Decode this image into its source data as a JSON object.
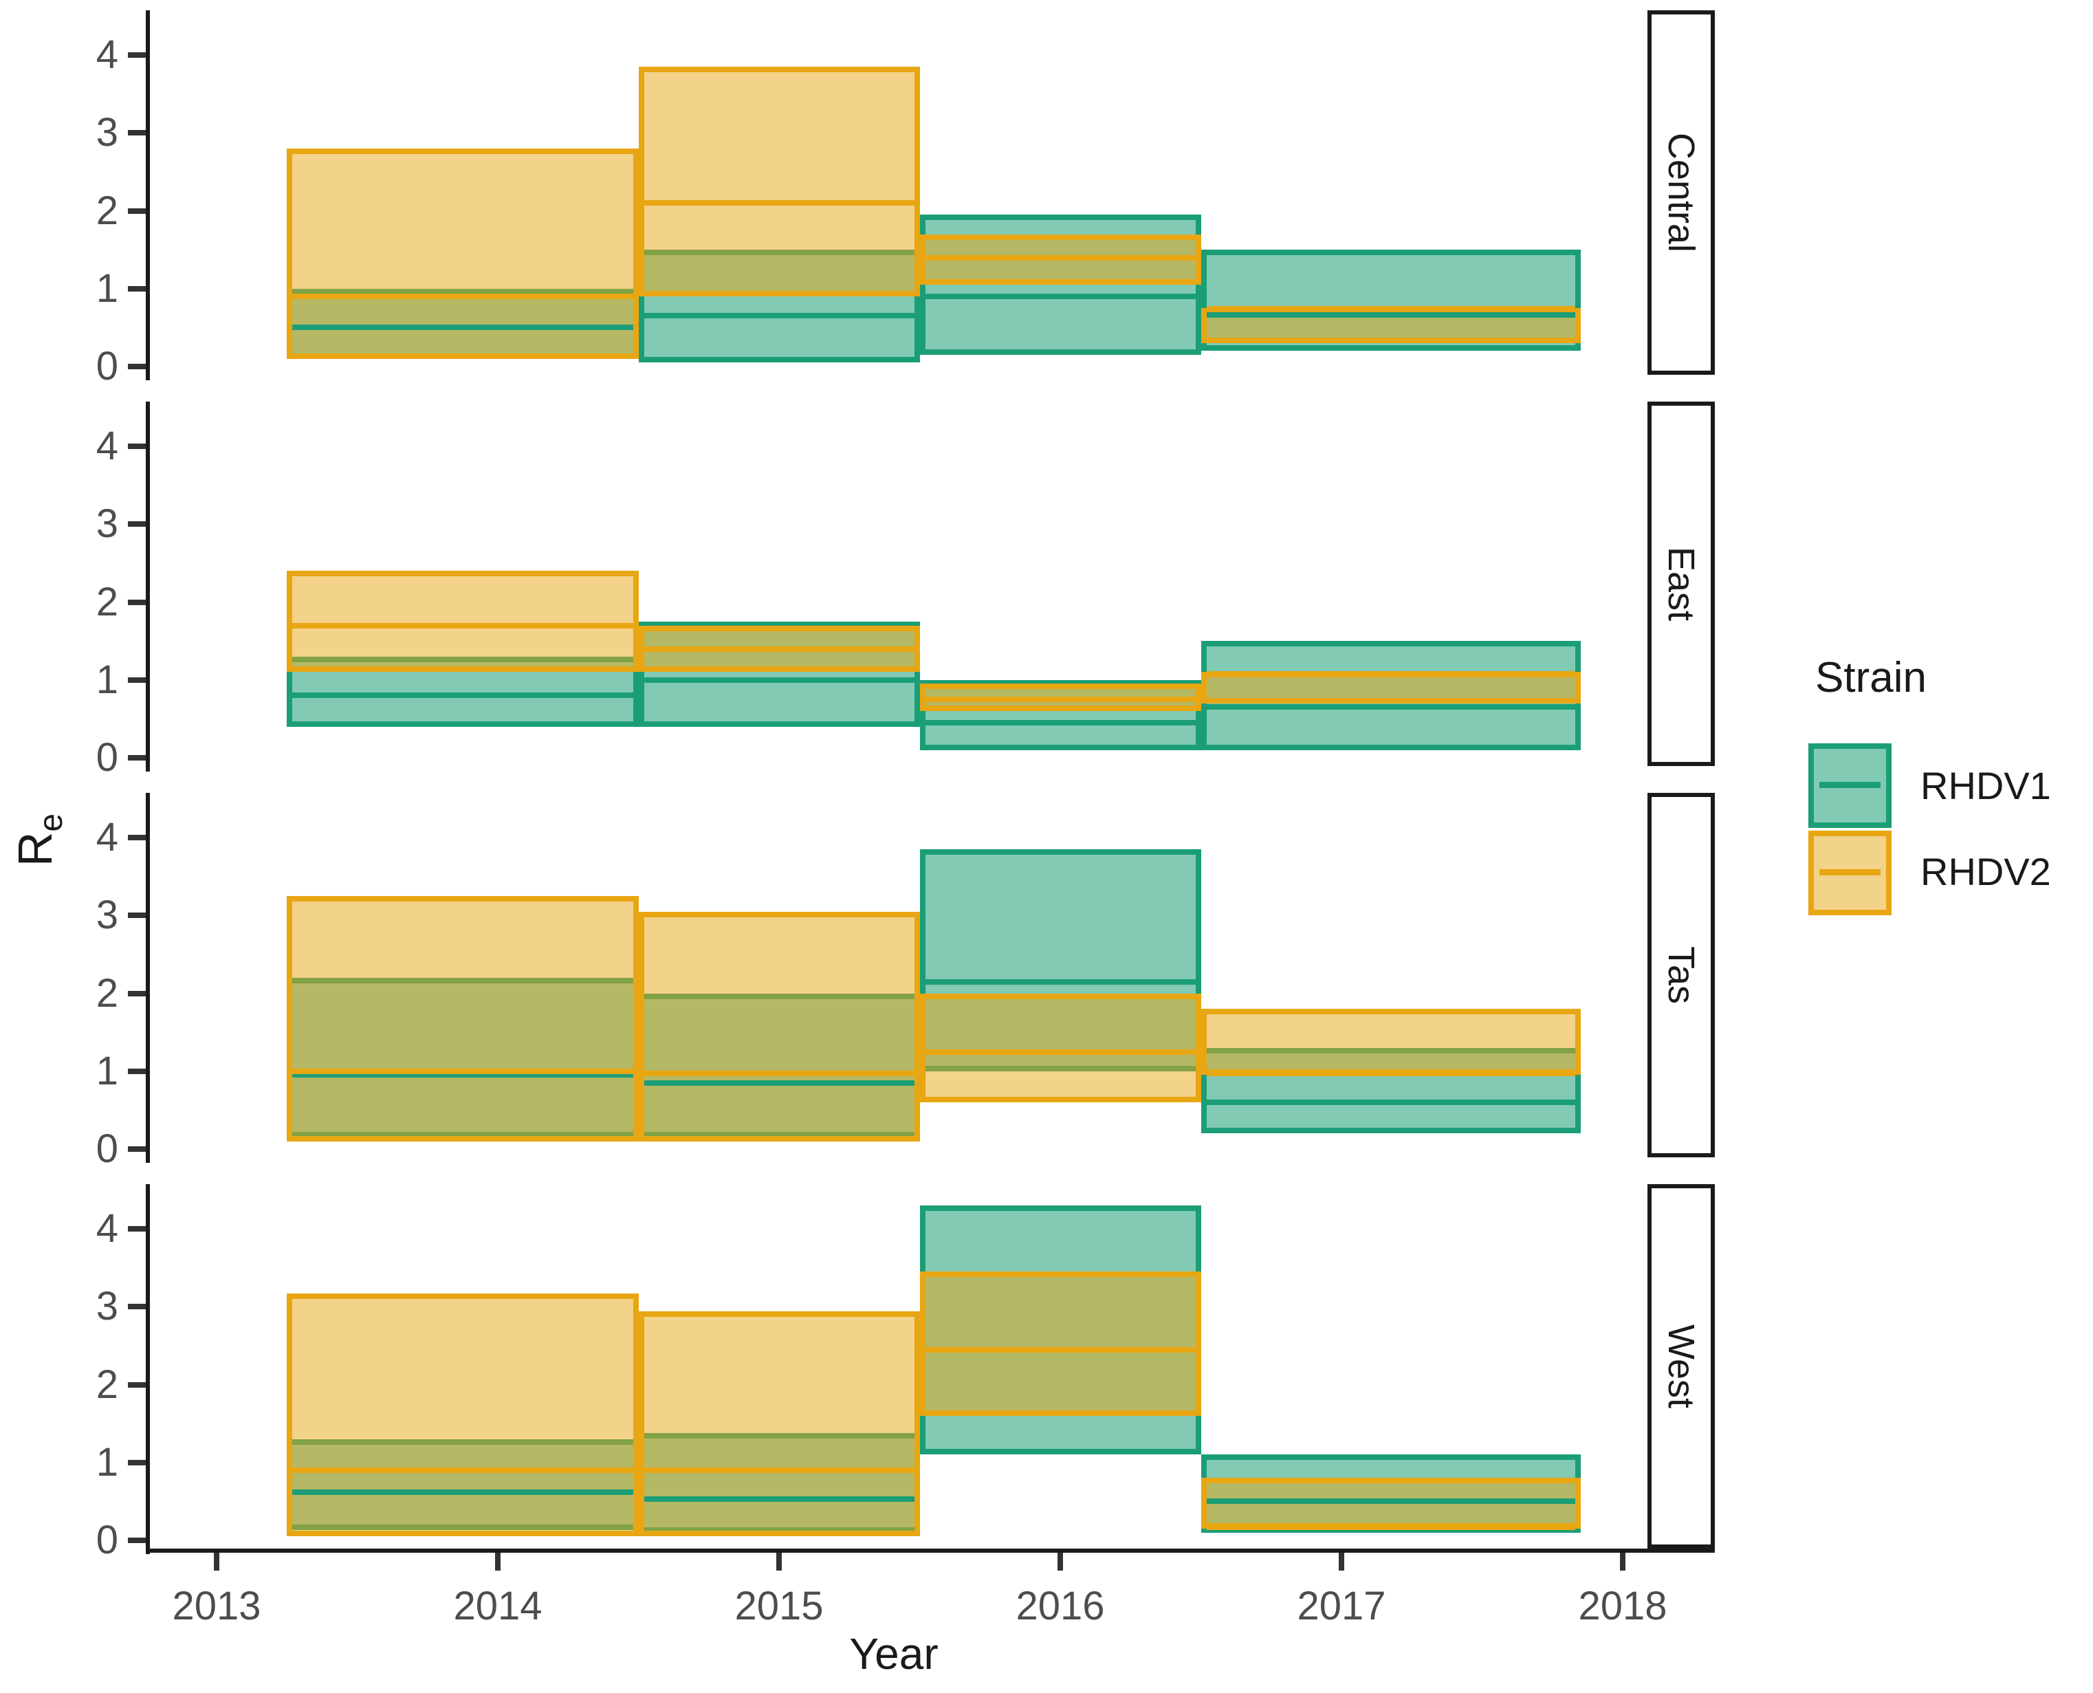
{
  "chart_data": {
    "type": "area",
    "title": "",
    "xlabel": "Year",
    "ylabel_main": "R",
    "ylabel_sub": "e",
    "x_ticks": [
      2013,
      2014,
      2015,
      2016,
      2017,
      2018
    ],
    "y_ticks": [
      0,
      1,
      2,
      3,
      4
    ],
    "ylim": [
      0,
      4.5
    ],
    "grid": false,
    "legend": {
      "title": "Strain",
      "position": "right",
      "entries": [
        {
          "label": "RHDV1",
          "stroke": "#1B9E77",
          "fill": "rgba(27,158,119,0.55)"
        },
        {
          "label": "RHDV2",
          "stroke": "#E8A613",
          "fill": "rgba(232,166,19,0.5)"
        }
      ]
    },
    "facets": [
      {
        "label": "Central",
        "segments": [
          {
            "x0": 2013.25,
            "x1": 2014.5,
            "RHDV1": {
              "lo": 0.1,
              "med": 0.5,
              "hi": 1.0
            },
            "RHDV2": {
              "lo": 0.1,
              "med": 0.9,
              "hi": 2.8
            }
          },
          {
            "x0": 2014.5,
            "x1": 2015.5,
            "RHDV1": {
              "lo": 0.05,
              "med": 0.65,
              "hi": 1.5
            },
            "RHDV2": {
              "lo": 0.9,
              "med": 2.1,
              "hi": 3.85
            }
          },
          {
            "x0": 2015.5,
            "x1": 2016.5,
            "RHDV1": {
              "lo": 0.15,
              "med": 0.9,
              "hi": 1.95
            },
            "RHDV2": {
              "lo": 1.05,
              "med": 1.4,
              "hi": 1.7
            }
          },
          {
            "x0": 2016.5,
            "x1": 2017.85,
            "RHDV1": {
              "lo": 0.2,
              "med": 0.66,
              "hi": 1.5
            },
            "RHDV2": {
              "lo": 0.3,
              "med": 0.74,
              "hi": 0.75
            }
          }
        ]
      },
      {
        "label": "East",
        "segments": [
          {
            "x0": 2013.25,
            "x1": 2014.5,
            "RHDV1": {
              "lo": 0.4,
              "med": 0.8,
              "hi": 1.3
            },
            "RHDV2": {
              "lo": 1.1,
              "med": 1.7,
              "hi": 2.4
            }
          },
          {
            "x0": 2014.5,
            "x1": 2015.5,
            "RHDV1": {
              "lo": 0.4,
              "med": 1.0,
              "hi": 1.75
            },
            "RHDV2": {
              "lo": 1.1,
              "med": 1.4,
              "hi": 1.7
            }
          },
          {
            "x0": 2015.5,
            "x1": 2016.5,
            "RHDV1": {
              "lo": 0.1,
              "med": 0.45,
              "hi": 1.0
            },
            "RHDV2": {
              "lo": 0.6,
              "med": 0.75,
              "hi": 0.95
            }
          },
          {
            "x0": 2016.5,
            "x1": 2017.85,
            "RHDV1": {
              "lo": 0.1,
              "med": 0.65,
              "hi": 1.5
            },
            "RHDV2": {
              "lo": 0.7,
              "med": 1.08,
              "hi": 1.1
            }
          }
        ]
      },
      {
        "label": "Tas",
        "segments": [
          {
            "x0": 2013.25,
            "x1": 2014.5,
            "RHDV1": {
              "lo": 0.15,
              "med": 0.95,
              "hi": 2.2
            },
            "RHDV2": {
              "lo": 0.1,
              "med": 1.0,
              "hi": 3.25
            }
          },
          {
            "x0": 2014.5,
            "x1": 2015.5,
            "RHDV1": {
              "lo": 0.15,
              "med": 0.85,
              "hi": 2.0
            },
            "RHDV2": {
              "lo": 0.1,
              "med": 0.97,
              "hi": 3.05
            }
          },
          {
            "x0": 2015.5,
            "x1": 2016.5,
            "RHDV1": {
              "lo": 1.0,
              "med": 2.15,
              "hi": 3.85
            },
            "RHDV2": {
              "lo": 0.6,
              "med": 1.25,
              "hi": 2.0
            }
          },
          {
            "x0": 2016.5,
            "x1": 2017.85,
            "RHDV1": {
              "lo": 0.2,
              "med": 0.6,
              "hi": 1.3
            },
            "RHDV2": {
              "lo": 0.95,
              "med": 0.97,
              "hi": 1.8
            }
          }
        ]
      },
      {
        "label": "West",
        "segments": [
          {
            "x0": 2013.25,
            "x1": 2014.5,
            "RHDV1": {
              "lo": 0.13,
              "med": 0.62,
              "hi": 1.3
            },
            "RHDV2": {
              "lo": 0.05,
              "med": 0.9,
              "hi": 3.17
            }
          },
          {
            "x0": 2014.5,
            "x1": 2015.5,
            "RHDV1": {
              "lo": 0.1,
              "med": 0.53,
              "hi": 1.38
            },
            "RHDV2": {
              "lo": 0.05,
              "med": 0.9,
              "hi": 2.94
            }
          },
          {
            "x0": 2015.5,
            "x1": 2016.5,
            "RHDV1": {
              "lo": 1.1,
              "med": 2.45,
              "hi": 4.3
            },
            "RHDV2": {
              "lo": 1.6,
              "med": 2.45,
              "hi": 3.45
            }
          },
          {
            "x0": 2016.5,
            "x1": 2017.85,
            "RHDV1": {
              "lo": 0.1,
              "med": 0.5,
              "hi": 1.1
            },
            "RHDV2": {
              "lo": 0.15,
              "med": 0.17,
              "hi": 0.8
            }
          }
        ]
      }
    ],
    "colors": {
      "rhdv1_stroke": "#1B9E77",
      "rhdv1_fill": "rgba(27,158,119,0.55)",
      "rhdv2_stroke": "#E8A613",
      "rhdv2_fill": "rgba(232,166,19,0.5)",
      "axis": "#1a1a1a",
      "tick_text": "#4d4d4d"
    }
  }
}
